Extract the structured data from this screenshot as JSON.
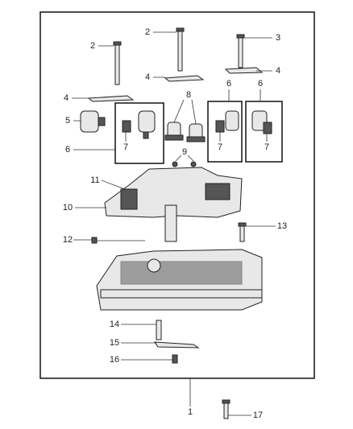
{
  "callouts": [
    "2",
    "2",
    "3",
    "4",
    "4",
    "4",
    "8",
    "6",
    "6",
    "5",
    "7",
    "6",
    "7",
    "7",
    "9",
    "11",
    "10",
    "13",
    "12",
    "14",
    "15",
    "16",
    "1",
    "17"
  ]
}
